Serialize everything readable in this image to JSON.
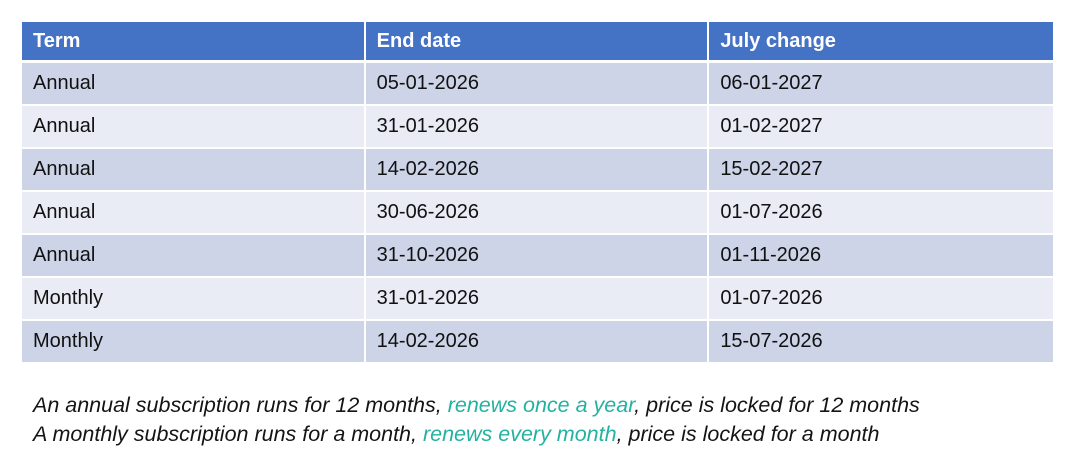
{
  "table": {
    "columns": [
      "Term",
      "End date",
      "July change"
    ],
    "rows": [
      [
        "Annual",
        "05-01-2026",
        "06-01-2027"
      ],
      [
        "Annual",
        "31-01-2026",
        "01-02-2027"
      ],
      [
        "Annual",
        "14-02-2026",
        "15-02-2027"
      ],
      [
        "Annual",
        "30-06-2026",
        "01-07-2026"
      ],
      [
        "Annual",
        "31-10-2026",
        "01-11-2026"
      ],
      [
        "Monthly",
        "31-01-2026",
        "01-07-2026"
      ],
      [
        "Monthly",
        "14-02-2026",
        "15-07-2026"
      ]
    ]
  },
  "notes": [
    {
      "parts": [
        {
          "text": "An annual subscription runs for 12 months, ",
          "accent": false
        },
        {
          "text": "renews once a year",
          "accent": true
        },
        {
          "text": ", price is locked for 12 months",
          "accent": false
        }
      ]
    },
    {
      "parts": [
        {
          "text": "A monthly subscription runs for a month, ",
          "accent": false
        },
        {
          "text": "renews every month",
          "accent": true
        },
        {
          "text": ", price is locked for a month",
          "accent": false
        }
      ]
    }
  ],
  "colors": {
    "header_bg": "#4472C4",
    "band_dark": "#CDD4E8",
    "band_light": "#E9EBF5",
    "accent_text": "#23B2A0",
    "header_text": "#FFFFFF",
    "cell_text": "#111111"
  }
}
